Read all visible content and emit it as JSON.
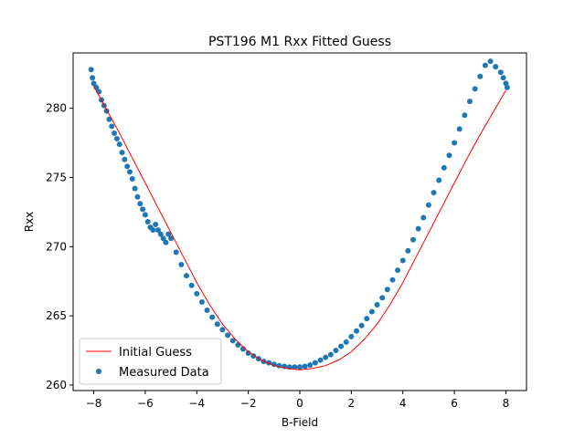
{
  "chart_data": {
    "type": "scatter",
    "title": "PST196 M1 Rxx Fitted Guess",
    "xlabel": "B-Field",
    "ylabel": "Rxx",
    "xlim": [
      -8.8,
      8.8
    ],
    "ylim": [
      259.6,
      284.0
    ],
    "x_ticks": [
      -8,
      -6,
      -4,
      -2,
      0,
      2,
      4,
      6,
      8
    ],
    "x_tick_labels": [
      "−8",
      "−6",
      "−4",
      "−2",
      "0",
      "2",
      "4",
      "6",
      "8"
    ],
    "y_ticks": [
      260,
      265,
      270,
      275,
      280
    ],
    "y_tick_labels": [
      "260",
      "265",
      "270",
      "275",
      "280"
    ],
    "grid": false,
    "legend_position": "lower-left",
    "colors": {
      "guess": "#ff0000",
      "measured": "#1f77b4"
    },
    "series": [
      {
        "name": "Initial Guess",
        "kind": "line",
        "x": [
          -8.0,
          -7.5,
          -7.0,
          -6.5,
          -6.0,
          -5.5,
          -5.0,
          -4.5,
          -4.0,
          -3.5,
          -3.0,
          -2.5,
          -2.0,
          -1.5,
          -1.0,
          -0.5,
          0.0,
          0.5,
          1.0,
          1.5,
          2.0,
          2.5,
          3.0,
          3.5,
          4.0,
          4.5,
          5.0,
          5.5,
          6.0,
          6.5,
          7.0,
          7.5,
          8.0
        ],
        "y": [
          281.6,
          279.9,
          278.2,
          276.4,
          274.6,
          272.8,
          271.0,
          269.2,
          267.4,
          265.8,
          264.4,
          263.3,
          262.4,
          261.8,
          261.4,
          261.2,
          261.1,
          261.2,
          261.4,
          261.8,
          262.4,
          263.3,
          264.4,
          265.8,
          267.4,
          269.2,
          271.0,
          272.8,
          274.6,
          276.4,
          278.1,
          279.7,
          281.3
        ]
      },
      {
        "name": "Measured Data",
        "kind": "scatter",
        "x": [
          -8.1,
          -8.05,
          -8.0,
          -7.9,
          -7.8,
          -7.7,
          -7.6,
          -7.5,
          -7.4,
          -7.3,
          -7.2,
          -7.1,
          -7.0,
          -6.9,
          -6.8,
          -6.7,
          -6.6,
          -6.5,
          -6.4,
          -6.3,
          -6.2,
          -6.1,
          -6.0,
          -5.9,
          -5.8,
          -5.7,
          -5.6,
          -5.5,
          -5.4,
          -5.3,
          -5.2,
          -5.1,
          -5.0,
          -4.8,
          -4.6,
          -4.4,
          -4.2,
          -4.0,
          -3.8,
          -3.6,
          -3.4,
          -3.2,
          -3.0,
          -2.8,
          -2.6,
          -2.4,
          -2.2,
          -2.0,
          -1.8,
          -1.6,
          -1.4,
          -1.2,
          -1.0,
          -0.8,
          -0.6,
          -0.4,
          -0.2,
          0.0,
          0.2,
          0.4,
          0.6,
          0.8,
          1.0,
          1.2,
          1.4,
          1.6,
          1.8,
          2.0,
          2.2,
          2.4,
          2.6,
          2.8,
          3.0,
          3.2,
          3.4,
          3.6,
          3.8,
          4.0,
          4.2,
          4.4,
          4.6,
          4.8,
          5.0,
          5.2,
          5.4,
          5.6,
          5.8,
          6.0,
          6.2,
          6.4,
          6.6,
          6.8,
          7.0,
          7.2,
          7.4,
          7.6,
          7.8,
          7.9,
          8.0,
          8.05
        ],
        "y": [
          282.8,
          282.2,
          281.8,
          281.5,
          281.2,
          280.6,
          280.2,
          279.8,
          279.2,
          278.7,
          278.2,
          277.8,
          277.4,
          276.8,
          276.3,
          275.8,
          275.4,
          274.9,
          274.2,
          273.6,
          273.1,
          272.7,
          272.3,
          271.8,
          271.4,
          271.2,
          271.6,
          271.2,
          270.9,
          270.6,
          270.3,
          270.9,
          270.6,
          269.6,
          268.7,
          267.9,
          267.2,
          266.6,
          266.0,
          265.4,
          264.9,
          264.4,
          264.0,
          263.6,
          263.2,
          262.9,
          262.6,
          262.3,
          262.1,
          261.9,
          261.7,
          261.6,
          261.5,
          261.4,
          261.35,
          261.3,
          261.3,
          261.3,
          261.35,
          261.45,
          261.6,
          261.8,
          262.0,
          262.2,
          262.5,
          262.8,
          263.1,
          263.5,
          263.9,
          264.3,
          264.8,
          265.3,
          265.8,
          266.3,
          266.9,
          267.6,
          268.3,
          269.0,
          269.7,
          270.5,
          271.3,
          272.1,
          273.0,
          273.9,
          274.8,
          275.7,
          276.6,
          277.5,
          278.5,
          279.5,
          280.5,
          281.4,
          282.3,
          283.1,
          283.4,
          283.0,
          282.6,
          282.2,
          281.8,
          281.5
        ]
      }
    ]
  }
}
